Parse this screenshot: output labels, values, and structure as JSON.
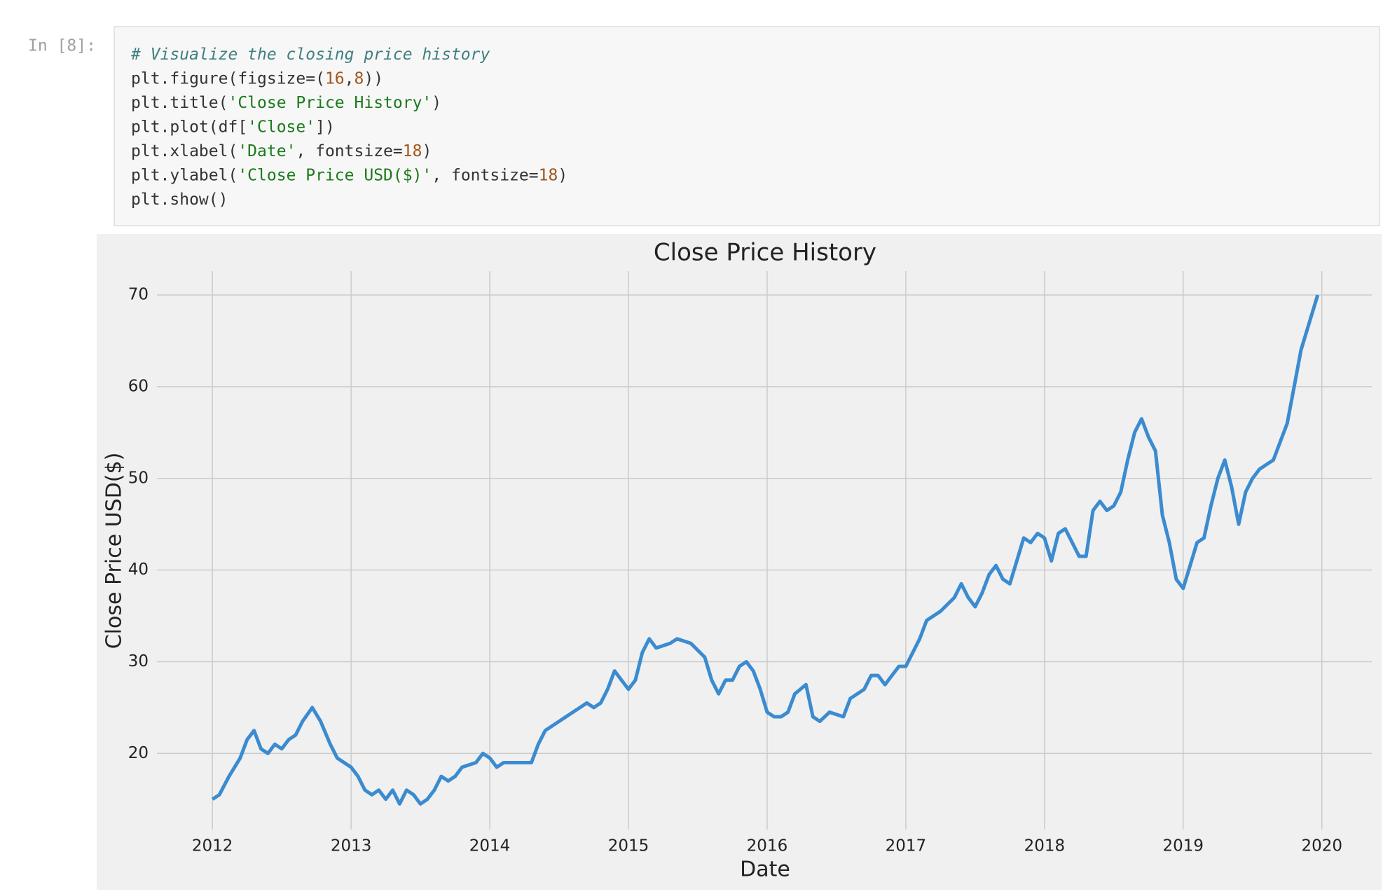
{
  "prompt": "In [8]:",
  "code": {
    "lines": [
      [
        {
          "text": "# Visualize the closing price history",
          "color": "#3f7f7f",
          "italic": true
        }
      ],
      [
        {
          "text": "plt.figure(figsize=(",
          "color": "#333333"
        },
        {
          "text": "16",
          "color": "#a0561b"
        },
        {
          "text": ",",
          "color": "#333333"
        },
        {
          "text": "8",
          "color": "#a0561b"
        },
        {
          "text": "))",
          "color": "#333333"
        }
      ],
      [
        {
          "text": "plt.title(",
          "color": "#333333"
        },
        {
          "text": "'Close Price History'",
          "color": "#1a7a1a"
        },
        {
          "text": ")",
          "color": "#333333"
        }
      ],
      [
        {
          "text": "plt.plot(df[",
          "color": "#333333"
        },
        {
          "text": "'Close'",
          "color": "#1a7a1a"
        },
        {
          "text": "])",
          "color": "#333333"
        }
      ],
      [
        {
          "text": "plt.xlabel(",
          "color": "#333333"
        },
        {
          "text": "'Date'",
          "color": "#1a7a1a"
        },
        {
          "text": ", fontsize=",
          "color": "#333333"
        },
        {
          "text": "18",
          "color": "#a0561b"
        },
        {
          "text": ")",
          "color": "#333333"
        }
      ],
      [
        {
          "text": "plt.ylabel(",
          "color": "#333333"
        },
        {
          "text": "'Close Price USD($)'",
          "color": "#1a7a1a"
        },
        {
          "text": ", fontsize=",
          "color": "#333333"
        },
        {
          "text": "18",
          "color": "#a0561b"
        },
        {
          "text": ")",
          "color": "#333333"
        }
      ],
      [
        {
          "text": "plt.show()",
          "color": "#333333"
        }
      ]
    ]
  },
  "chart_data": {
    "type": "line",
    "title": "Close Price History",
    "xlabel": "Date",
    "ylabel": "Close Price USD($)",
    "x": [
      2012.0,
      2012.05,
      2012.12,
      2012.2,
      2012.25,
      2012.3,
      2012.35,
      2012.4,
      2012.45,
      2012.5,
      2012.55,
      2012.6,
      2012.65,
      2012.72,
      2012.78,
      2012.85,
      2012.9,
      2012.95,
      2013.0,
      2013.05,
      2013.1,
      2013.15,
      2013.2,
      2013.25,
      2013.3,
      2013.35,
      2013.4,
      2013.45,
      2013.5,
      2013.55,
      2013.6,
      2013.65,
      2013.7,
      2013.75,
      2013.8,
      2013.9,
      2013.95,
      2014.0,
      2014.05,
      2014.1,
      2014.2,
      2014.3,
      2014.35,
      2014.4,
      2014.5,
      2014.55,
      2014.65,
      2014.7,
      2014.75,
      2014.8,
      2014.85,
      2014.9,
      2014.95,
      2015.0,
      2015.05,
      2015.1,
      2015.15,
      2015.2,
      2015.3,
      2015.35,
      2015.45,
      2015.55,
      2015.6,
      2015.65,
      2015.7,
      2015.75,
      2015.8,
      2015.85,
      2015.9,
      2015.95,
      2016.0,
      2016.05,
      2016.1,
      2016.15,
      2016.2,
      2016.28,
      2016.33,
      2016.38,
      2016.45,
      2016.55,
      2016.6,
      2016.7,
      2016.75,
      2016.8,
      2016.85,
      2016.9,
      2016.95,
      2017.0,
      2017.1,
      2017.15,
      2017.25,
      2017.35,
      2017.4,
      2017.45,
      2017.5,
      2017.55,
      2017.6,
      2017.65,
      2017.7,
      2017.75,
      2017.8,
      2017.85,
      2017.9,
      2017.95,
      2018.0,
      2018.05,
      2018.1,
      2018.15,
      2018.2,
      2018.25,
      2018.3,
      2018.35,
      2018.4,
      2018.45,
      2018.5,
      2018.55,
      2018.6,
      2018.65,
      2018.7,
      2018.75,
      2018.8,
      2018.85,
      2018.9,
      2018.95,
      2019.0,
      2019.05,
      2019.1,
      2019.15,
      2019.2,
      2019.25,
      2019.3,
      2019.35,
      2019.4,
      2019.45,
      2019.5,
      2019.55,
      2019.6,
      2019.65,
      2019.7,
      2019.75,
      2019.8,
      2019.85,
      2019.9,
      2019.97
    ],
    "series": [
      {
        "color": "#3b8bd0",
        "values": [
          15,
          15.5,
          17.5,
          19.5,
          21.5,
          22.5,
          20.5,
          20,
          21,
          20.5,
          21.5,
          22,
          23.5,
          25,
          23.5,
          21,
          19.5,
          19,
          18.5,
          17.5,
          16,
          15.5,
          16,
          15,
          16,
          14.5,
          16,
          15.5,
          14.5,
          15,
          16,
          17.5,
          17,
          17.5,
          18.5,
          19,
          20,
          19.5,
          18.5,
          19,
          19,
          19,
          21,
          22.5,
          23.5,
          24,
          25,
          25.5,
          25,
          25.5,
          27,
          29,
          28,
          27,
          28,
          31,
          32.5,
          31.5,
          32,
          32.5,
          32,
          30.5,
          28,
          26.5,
          28,
          28,
          29.5,
          30,
          29,
          27,
          24.5,
          24,
          24,
          24.5,
          26.5,
          27.5,
          24,
          23.5,
          24.5,
          24,
          26,
          27,
          28.5,
          28.5,
          27.5,
          28.5,
          29.5,
          29.5,
          32.5,
          34.5,
          35.5,
          37,
          38.5,
          37,
          36,
          37.5,
          39.5,
          40.5,
          39,
          38.5,
          41,
          43.5,
          43,
          44,
          43.5,
          41,
          44,
          44.5,
          43,
          41.5,
          41.5,
          46.5,
          47.5,
          46.5,
          47,
          48.5,
          52,
          55,
          56.5,
          54.5,
          53,
          46,
          43,
          39,
          38,
          40.5,
          43,
          43.5,
          47,
          50,
          52,
          49,
          45,
          48.5,
          50,
          51,
          51.5,
          52,
          54,
          56,
          60,
          64,
          66.5,
          70
        ]
      }
    ],
    "xlim": [
      2011.6,
      2020.36
    ],
    "xticks": [
      2012,
      2013,
      2014,
      2015,
      2016,
      2017,
      2018,
      2019,
      2020
    ],
    "ylim": [
      11.7,
      72.6
    ],
    "yticks": [
      20,
      30,
      40,
      50,
      60,
      70
    ],
    "grid": true,
    "background": "#f0f0f0"
  }
}
